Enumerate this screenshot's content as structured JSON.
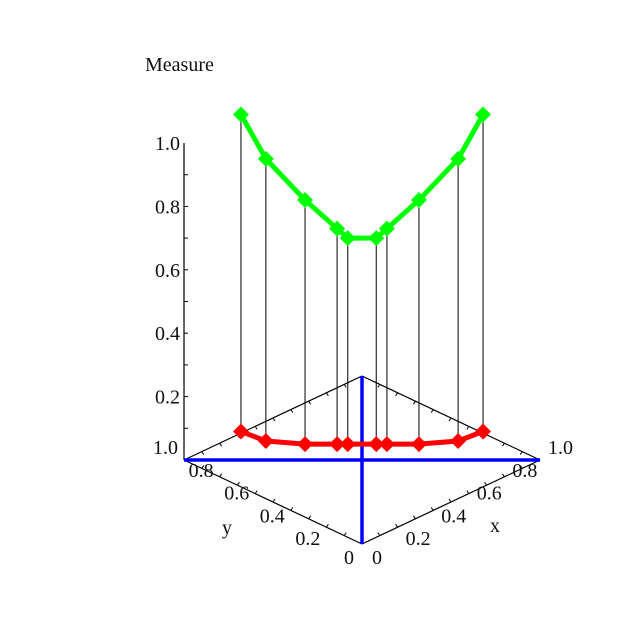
{
  "chart_data": {
    "type": "line",
    "title": "Measure",
    "xlabel": "x",
    "ylabel": "y",
    "zlabel": "",
    "xlim": [
      0,
      1
    ],
    "ylim": [
      0,
      1
    ],
    "zlim": [
      0,
      1
    ],
    "x_ticks": [
      "0",
      "0.2",
      "0.4",
      "0.6",
      "0.8",
      "1.0"
    ],
    "y_ticks": [
      "0",
      "0.2",
      "0.4",
      "0.6",
      "0.8",
      "1.0"
    ],
    "z_ticks": [
      "0.2",
      "0.4",
      "0.6",
      "0.8",
      "1.0"
    ],
    "series": [
      {
        "color": "#00ff00",
        "marker": "diamond",
        "x": [
          0.16,
          0.23,
          0.34,
          0.43,
          0.46,
          0.54,
          0.57,
          0.66,
          0.77,
          0.84
        ],
        "y": [
          0.84,
          0.77,
          0.66,
          0.57,
          0.54,
          0.46,
          0.43,
          0.34,
          0.23,
          0.16
        ],
        "z": [
          1.09,
          0.95,
          0.82,
          0.73,
          0.7,
          0.7,
          0.73,
          0.82,
          0.95,
          1.09
        ]
      },
      {
        "color": "#ff0000",
        "marker": "diamond",
        "x": [
          0.16,
          0.23,
          0.34,
          0.43,
          0.46,
          0.54,
          0.57,
          0.66,
          0.77,
          0.84
        ],
        "y": [
          0.84,
          0.77,
          0.66,
          0.57,
          0.54,
          0.46,
          0.43,
          0.34,
          0.23,
          0.16
        ],
        "z": [
          0.09,
          0.06,
          0.05,
          0.05,
          0.05,
          0.05,
          0.05,
          0.05,
          0.06,
          0.09
        ]
      }
    ],
    "reference_lines_color": "#0000ff",
    "drop_lines": true,
    "grid": false
  }
}
